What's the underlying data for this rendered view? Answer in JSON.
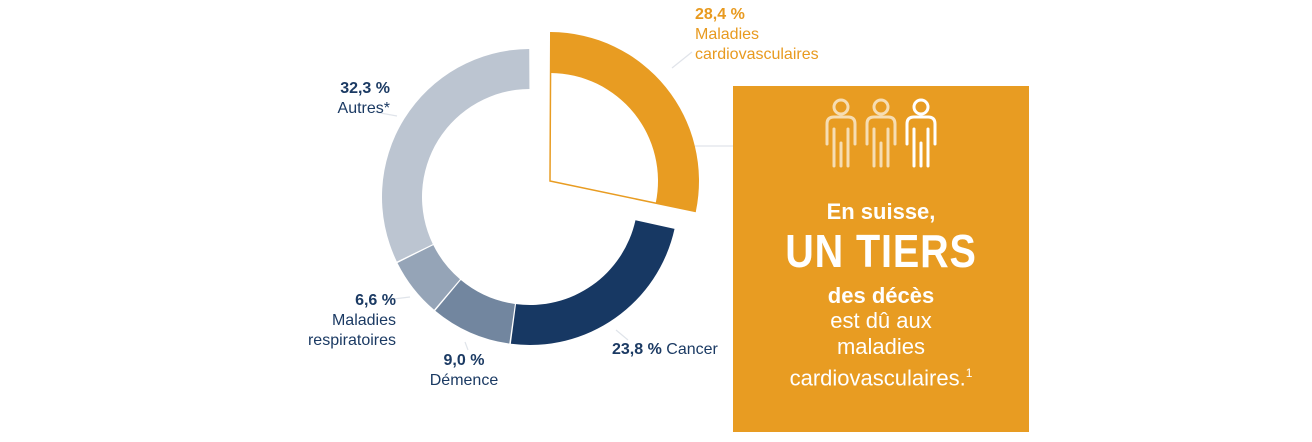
{
  "chart_data": {
    "type": "pie",
    "variant": "donut",
    "slices": [
      {
        "label": "Maladies cardiovasculaires",
        "pct_text": "28,4 %",
        "value": 28.4,
        "color": "#e89c22"
      },
      {
        "label": "Cancer",
        "pct_text": "23,8 %",
        "value": 23.8,
        "color": "#173863"
      },
      {
        "label": "Démence",
        "pct_text": "9,0 %",
        "value": 9.0,
        "color": "#72869f"
      },
      {
        "label": "Maladies respiratoires",
        "pct_text": "6,6 %",
        "value": 6.6,
        "color": "#95a4b7"
      },
      {
        "label": "Autres*",
        "pct_text": "32,3 %",
        "value": 32.3,
        "color": "#bcc5d1"
      }
    ]
  },
  "labels": {
    "cardio": {
      "pct": "28,4 %",
      "line1": "Maladies",
      "line2": "cardiovasculaires"
    },
    "autres": {
      "pct": "32,3 %",
      "name": "Autres*"
    },
    "resp": {
      "pct": "6,6 %",
      "line1": "Maladies",
      "line2": "respiratoires"
    },
    "demence": {
      "pct": "9,0 %",
      "name": "Démence"
    },
    "cancer": {
      "pct": "23,8 %",
      "name": "Cancer"
    }
  },
  "info_box": {
    "line1": "En suisse,",
    "line2": "UN TIERS",
    "line3": "des décès",
    "line4a": "est dû aux",
    "line4b": "maladies",
    "line4c": "cardiovasculaires.",
    "footnote": "1",
    "icon": "people-icon",
    "colors": {
      "background": "#e89c22",
      "text": "#ffffff",
      "icon_light": "#f6ddb3"
    }
  }
}
